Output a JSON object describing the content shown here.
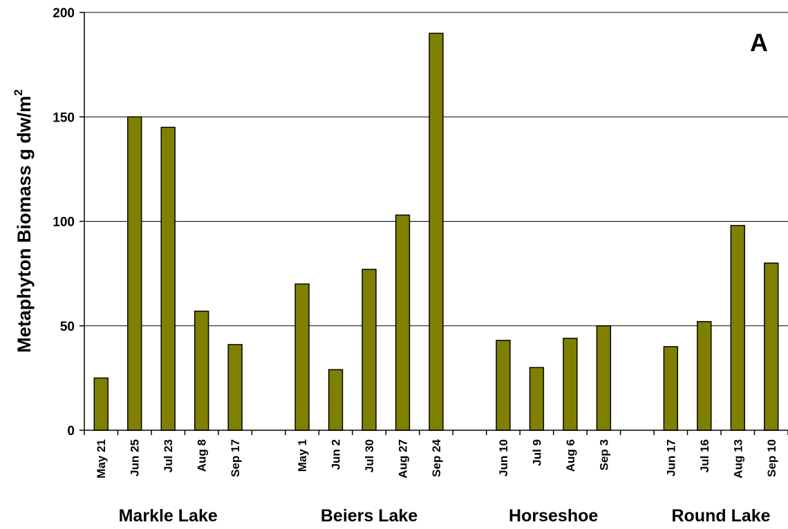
{
  "chart_data": {
    "type": "bar",
    "panel_label": "A",
    "ylabel": "Metaphyton Biomass g dw/m",
    "ylabel_superscript": "2",
    "ylim": [
      0,
      200
    ],
    "yticks": [
      0,
      50,
      100,
      150,
      200
    ],
    "grid": true,
    "bar_color": "#808000",
    "groups": [
      {
        "name": "Markle Lake",
        "categories": [
          "May 21",
          "Jun 25",
          "Jul 23",
          "Aug 8",
          "Sep 17"
        ],
        "values": [
          25,
          150,
          145,
          57,
          41
        ]
      },
      {
        "name": "Beiers Lake",
        "categories": [
          "May 1",
          "Jun 2",
          "Jul 30",
          "Aug 27",
          "Sep 24"
        ],
        "values": [
          70,
          29,
          77,
          103,
          190
        ]
      },
      {
        "name": "Horseshoe",
        "categories": [
          "Jun 10",
          "Jul 9",
          "Aug 6",
          "Sep 3"
        ],
        "values": [
          43,
          30,
          44,
          50
        ]
      },
      {
        "name": "Round Lake",
        "categories": [
          "Jun 17",
          "Jul 16",
          "Aug 13",
          "Sep 10"
        ],
        "values": [
          40,
          52,
          98,
          80
        ]
      }
    ]
  }
}
